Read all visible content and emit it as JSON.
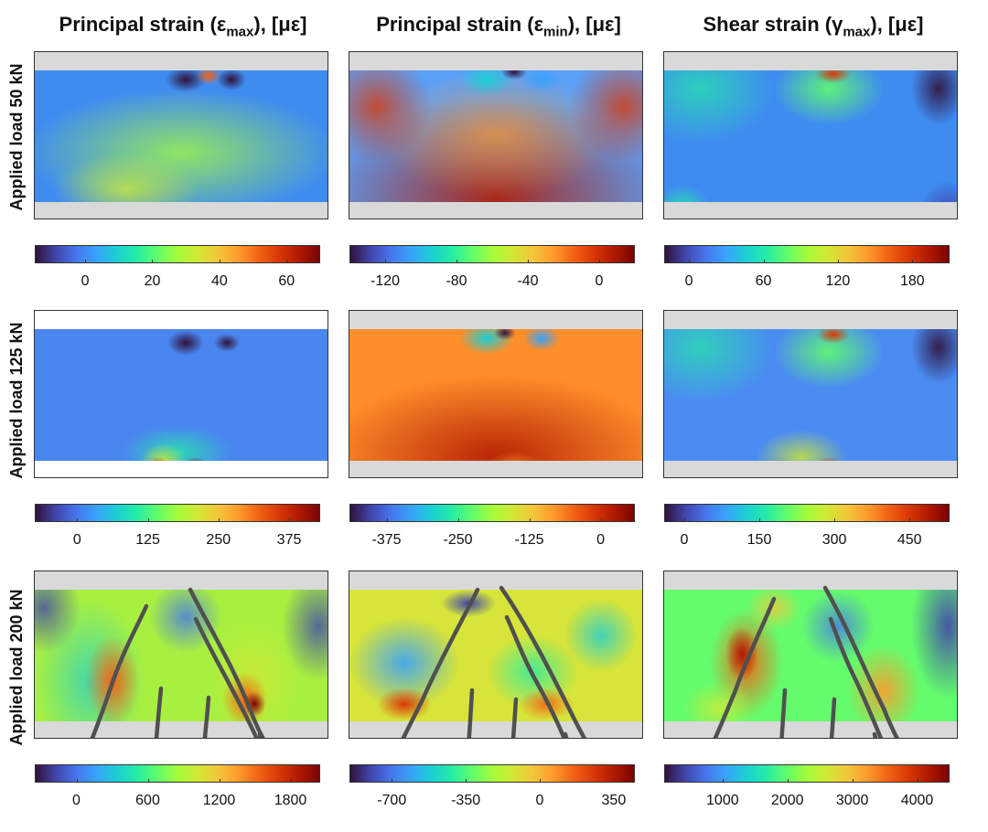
{
  "headers": {
    "col1": {
      "prefix": "Principal strain (ε",
      "sub": "max",
      "suffix": "), [με]"
    },
    "col2": {
      "prefix": "Principal strain (ε",
      "sub": "min",
      "suffix": "), [με]"
    },
    "col3": {
      "prefix": "Shear strain (γ",
      "sub": "max",
      "suffix": "), [με]"
    }
  },
  "rows": [
    "Applied load 50 kN",
    "Applied load 125 kN",
    "Applied load 200 kN"
  ],
  "chart_data": [
    {
      "type": "heatmap",
      "quantity": "Principal strain (ε_max)",
      "load": "50 kN",
      "colorbar_ticks": [
        "0",
        "20",
        "40",
        "60"
      ],
      "colorbar_range": [
        -15,
        70
      ]
    },
    {
      "type": "heatmap",
      "quantity": "Principal strain (ε_min)",
      "load": "50 kN",
      "colorbar_ticks": [
        "-120",
        "-80",
        "-40",
        "0"
      ],
      "colorbar_range": [
        -140,
        20
      ]
    },
    {
      "type": "heatmap",
      "quantity": "Shear strain (γ_max)",
      "load": "50 kN",
      "colorbar_ticks": [
        "0",
        "60",
        "120",
        "180"
      ],
      "colorbar_range": [
        -20,
        210
      ]
    },
    {
      "type": "heatmap",
      "quantity": "Principal strain (ε_max)",
      "load": "125 kN",
      "colorbar_ticks": [
        "0",
        "125",
        "250",
        "375"
      ],
      "colorbar_range": [
        -75,
        430
      ]
    },
    {
      "type": "heatmap",
      "quantity": "Principal strain (ε_min)",
      "load": "125 kN",
      "colorbar_ticks": [
        "-375",
        "-250",
        "-125",
        "0"
      ],
      "colorbar_range": [
        -440,
        60
      ]
    },
    {
      "type": "heatmap",
      "quantity": "Shear strain (γ_max)",
      "load": "125 kN",
      "colorbar_ticks": [
        "0",
        "150",
        "300",
        "450"
      ],
      "colorbar_range": [
        -40,
        530
      ]
    },
    {
      "type": "heatmap",
      "quantity": "Principal strain (ε_max)",
      "load": "200 kN",
      "colorbar_ticks": [
        "0",
        "600",
        "1200",
        "1800"
      ],
      "colorbar_range": [
        -350,
        2050
      ]
    },
    {
      "type": "heatmap",
      "quantity": "Principal strain (ε_min)",
      "load": "200 kN",
      "colorbar_ticks": [
        "-700",
        "-350",
        "0",
        "350"
      ],
      "colorbar_range": [
        -900,
        450
      ]
    },
    {
      "type": "heatmap",
      "quantity": "Shear strain (γ_max)",
      "load": "200 kN",
      "colorbar_ticks": [
        "1000",
        "2000",
        "3000",
        "4000"
      ],
      "colorbar_range": [
        100,
        4500
      ]
    }
  ]
}
